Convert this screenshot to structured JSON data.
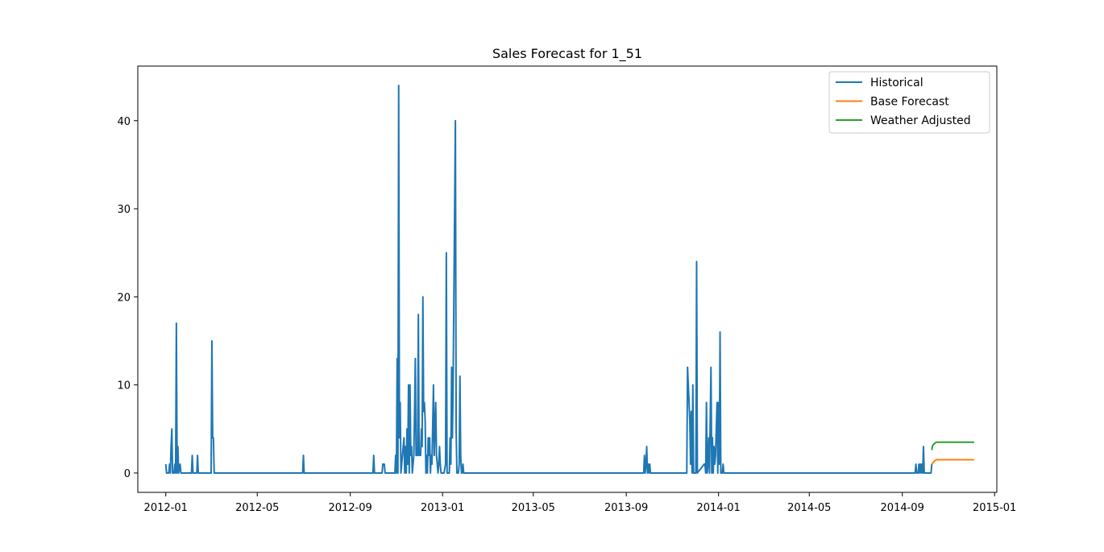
{
  "chart_data": {
    "type": "line",
    "title": "Sales Forecast for 1_51",
    "xlabel": "",
    "ylabel": "",
    "x_axis_type": "date",
    "xlim": [
      "2011-11-25",
      "2015-01-04"
    ],
    "ylim": [
      -2.2,
      46.2
    ],
    "x_ticks": [
      "2012-01",
      "2012-05",
      "2012-09",
      "2013-01",
      "2013-05",
      "2013-09",
      "2014-01",
      "2014-05",
      "2014-09",
      "2015-01"
    ],
    "y_ticks": [
      0,
      10,
      20,
      30,
      40
    ],
    "grid": false,
    "legend_position": "top-right",
    "series": [
      {
        "name": "Historical",
        "color": "#1f77b4",
        "points": [
          [
            "2012-01-01",
            1
          ],
          [
            "2012-01-02",
            0
          ],
          [
            "2012-01-05",
            0
          ],
          [
            "2012-01-06",
            1
          ],
          [
            "2012-01-07",
            0
          ],
          [
            "2012-01-08",
            3
          ],
          [
            "2012-01-09",
            5
          ],
          [
            "2012-01-10",
            0
          ],
          [
            "2012-01-12",
            0
          ],
          [
            "2012-01-13",
            1
          ],
          [
            "2012-01-14",
            0
          ],
          [
            "2012-01-15",
            17
          ],
          [
            "2012-01-16",
            0
          ],
          [
            "2012-01-17",
            3
          ],
          [
            "2012-01-18",
            0
          ],
          [
            "2012-01-20",
            1
          ],
          [
            "2012-01-21",
            0
          ],
          [
            "2012-02-04",
            0
          ],
          [
            "2012-02-05",
            2
          ],
          [
            "2012-02-06",
            0
          ],
          [
            "2012-02-11",
            0
          ],
          [
            "2012-02-12",
            2
          ],
          [
            "2012-02-13",
            0
          ],
          [
            "2012-03-01",
            0
          ],
          [
            "2012-03-02",
            15
          ],
          [
            "2012-03-03",
            4
          ],
          [
            "2012-03-04",
            4
          ],
          [
            "2012-03-05",
            0
          ],
          [
            "2012-06-30",
            0
          ],
          [
            "2012-07-01",
            2
          ],
          [
            "2012-07-02",
            0
          ],
          [
            "2012-10-01",
            0
          ],
          [
            "2012-10-02",
            2
          ],
          [
            "2012-10-03",
            0
          ],
          [
            "2012-10-13",
            0
          ],
          [
            "2012-10-14",
            1
          ],
          [
            "2012-10-16",
            1
          ],
          [
            "2012-10-17",
            0
          ],
          [
            "2012-10-30",
            0
          ],
          [
            "2012-10-31",
            2
          ],
          [
            "2012-11-01",
            0
          ],
          [
            "2012-11-02",
            13
          ],
          [
            "2012-11-03",
            0
          ],
          [
            "2012-11-04",
            44
          ],
          [
            "2012-11-05",
            4
          ],
          [
            "2012-11-06",
            8
          ],
          [
            "2012-11-07",
            0
          ],
          [
            "2012-11-09",
            2
          ],
          [
            "2012-11-11",
            4
          ],
          [
            "2012-11-12",
            0
          ],
          [
            "2012-11-13",
            3
          ],
          [
            "2012-11-14",
            0
          ],
          [
            "2012-11-15",
            5
          ],
          [
            "2012-11-16",
            1
          ],
          [
            "2012-11-17",
            10
          ],
          [
            "2012-11-18",
            0
          ],
          [
            "2012-11-19",
            10
          ],
          [
            "2012-11-20",
            2
          ],
          [
            "2012-11-21",
            3
          ],
          [
            "2012-11-22",
            0
          ],
          [
            "2012-11-24",
            2
          ],
          [
            "2012-11-25",
            7
          ],
          [
            "2012-11-26",
            13
          ],
          [
            "2012-11-27",
            2
          ],
          [
            "2012-11-29",
            2
          ],
          [
            "2012-11-30",
            18
          ],
          [
            "2012-12-01",
            2
          ],
          [
            "2012-12-03",
            2
          ],
          [
            "2012-12-04",
            5
          ],
          [
            "2012-12-05",
            3
          ],
          [
            "2012-12-06",
            20
          ],
          [
            "2012-12-07",
            7
          ],
          [
            "2012-12-08",
            8
          ],
          [
            "2012-12-09",
            6
          ],
          [
            "2012-12-10",
            0
          ],
          [
            "2012-12-11",
            2
          ],
          [
            "2012-12-12",
            0
          ],
          [
            "2012-12-13",
            4
          ],
          [
            "2012-12-14",
            2
          ],
          [
            "2012-12-15",
            4
          ],
          [
            "2012-12-16",
            0
          ],
          [
            "2012-12-17",
            2
          ],
          [
            "2012-12-18",
            1
          ],
          [
            "2012-12-20",
            10
          ],
          [
            "2012-12-21",
            2
          ],
          [
            "2012-12-22",
            5
          ],
          [
            "2012-12-23",
            8
          ],
          [
            "2012-12-24",
            2
          ],
          [
            "2012-12-25",
            1
          ],
          [
            "2012-12-26",
            0
          ],
          [
            "2012-12-27",
            1
          ],
          [
            "2012-12-28",
            3
          ],
          [
            "2012-12-29",
            1
          ],
          [
            "2012-12-30",
            0
          ],
          [
            "2013-01-03",
            0
          ],
          [
            "2013-01-05",
            1
          ],
          [
            "2013-01-06",
            25
          ],
          [
            "2013-01-07",
            0
          ],
          [
            "2013-01-10",
            0
          ],
          [
            "2013-01-11",
            4
          ],
          [
            "2013-01-12",
            1
          ],
          [
            "2013-01-13",
            12
          ],
          [
            "2013-01-14",
            4
          ],
          [
            "2013-01-15",
            10
          ],
          [
            "2013-01-18",
            40
          ],
          [
            "2013-01-19",
            5
          ],
          [
            "2013-01-20",
            0
          ],
          [
            "2013-01-22",
            0
          ],
          [
            "2013-01-23",
            1
          ],
          [
            "2013-01-24",
            11
          ],
          [
            "2013-01-25",
            2
          ],
          [
            "2013-01-26",
            0
          ],
          [
            "2013-01-27",
            0
          ],
          [
            "2013-01-28",
            1
          ],
          [
            "2013-01-29",
            0
          ],
          [
            "2013-09-24",
            0
          ],
          [
            "2013-09-25",
            2
          ],
          [
            "2013-09-26",
            0
          ],
          [
            "2013-09-27",
            1
          ],
          [
            "2013-09-28",
            3
          ],
          [
            "2013-09-29",
            0
          ],
          [
            "2013-09-30",
            1
          ],
          [
            "2013-10-01",
            0
          ],
          [
            "2013-10-02",
            1
          ],
          [
            "2013-10-03",
            0
          ],
          [
            "2013-11-20",
            0
          ],
          [
            "2013-11-21",
            12
          ],
          [
            "2013-11-22",
            10
          ],
          [
            "2013-11-23",
            8
          ],
          [
            "2013-11-24",
            6
          ],
          [
            "2013-11-25",
            1
          ],
          [
            "2013-11-26",
            7
          ],
          [
            "2013-11-27",
            0
          ],
          [
            "2013-11-28",
            10
          ],
          [
            "2013-11-29",
            0
          ],
          [
            "2013-12-02",
            0
          ],
          [
            "2013-12-03",
            24
          ],
          [
            "2013-12-04",
            0
          ],
          [
            "2013-12-13",
            1
          ],
          [
            "2013-12-14",
            1
          ],
          [
            "2013-12-15",
            0
          ],
          [
            "2013-12-16",
            8
          ],
          [
            "2013-12-17",
            0
          ],
          [
            "2013-12-18",
            1
          ],
          [
            "2013-12-19",
            4
          ],
          [
            "2013-12-20",
            0
          ],
          [
            "2013-12-21",
            6
          ],
          [
            "2013-12-22",
            12
          ],
          [
            "2013-12-23",
            0
          ],
          [
            "2013-12-24",
            4
          ],
          [
            "2013-12-25",
            0
          ],
          [
            "2013-12-26",
            3
          ],
          [
            "2013-12-27",
            1
          ],
          [
            "2013-12-28",
            2
          ],
          [
            "2013-12-29",
            5
          ],
          [
            "2013-12-30",
            8
          ],
          [
            "2013-12-31",
            0
          ],
          [
            "2014-01-01",
            8
          ],
          [
            "2014-01-02",
            1
          ],
          [
            "2014-01-03",
            16
          ],
          [
            "2014-01-04",
            0
          ],
          [
            "2014-01-06",
            0
          ],
          [
            "2014-01-07",
            1
          ],
          [
            "2014-01-08",
            0
          ],
          [
            "2014-09-18",
            0
          ],
          [
            "2014-09-19",
            1
          ],
          [
            "2014-09-20",
            0
          ],
          [
            "2014-09-22",
            0
          ],
          [
            "2014-09-23",
            1
          ],
          [
            "2014-09-24",
            0
          ],
          [
            "2014-09-25",
            1
          ],
          [
            "2014-09-26",
            0
          ],
          [
            "2014-09-27",
            1
          ],
          [
            "2014-09-28",
            0
          ],
          [
            "2014-09-29",
            3
          ],
          [
            "2014-09-30",
            0
          ],
          [
            "2014-10-09",
            0
          ],
          [
            "2014-10-10",
            1
          ]
        ]
      },
      {
        "name": "Base Forecast",
        "color": "#ff7f0e",
        "points": [
          [
            "2014-10-10",
            1
          ],
          [
            "2014-10-12",
            1.2
          ],
          [
            "2014-10-14",
            1.4
          ],
          [
            "2014-10-16",
            1.5
          ],
          [
            "2014-12-05",
            1.5
          ]
        ]
      },
      {
        "name": "Weather Adjusted",
        "color": "#2ca02c",
        "points": [
          [
            "2014-10-10",
            2.6
          ],
          [
            "2014-10-11",
            3.1
          ],
          [
            "2014-10-13",
            3.3
          ],
          [
            "2014-10-16",
            3.5
          ],
          [
            "2014-12-05",
            3.5
          ]
        ]
      }
    ]
  }
}
